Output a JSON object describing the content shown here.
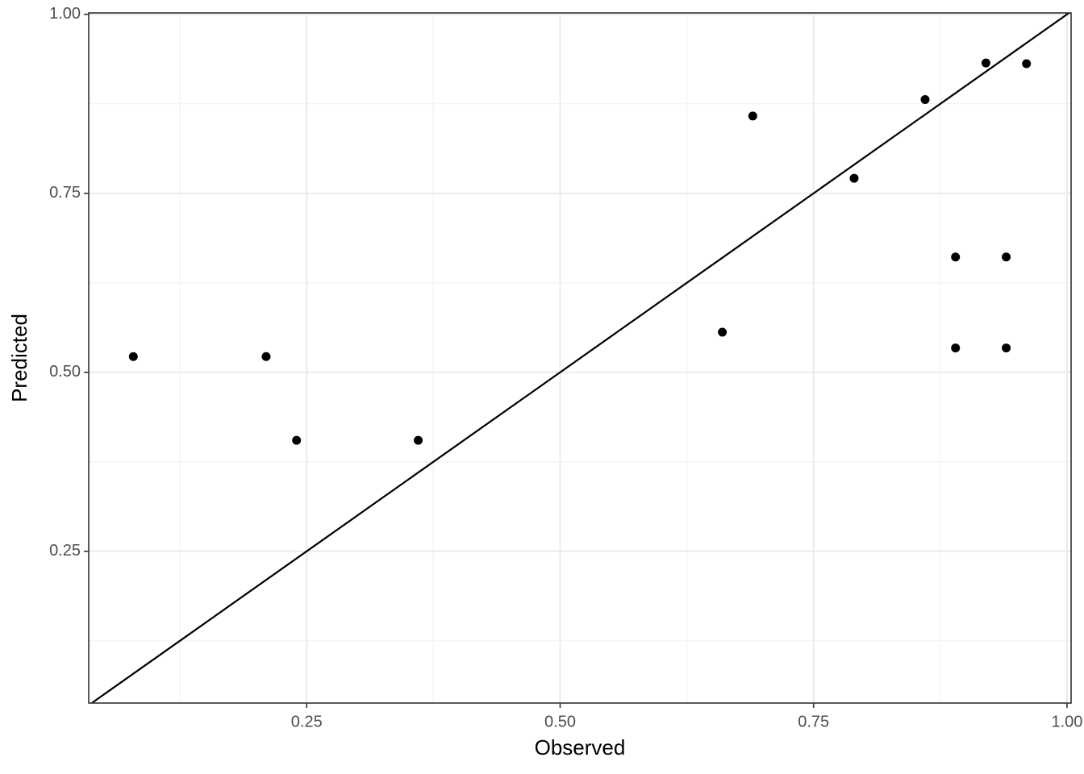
{
  "chart_data": {
    "type": "scatter",
    "x_label": "Observed",
    "y_label": "Predicted",
    "x": [
      0.079,
      0.21,
      0.24,
      0.36,
      0.66,
      0.69,
      0.79,
      0.86,
      0.89,
      0.94,
      0.89,
      0.94,
      0.92,
      0.96
    ],
    "values": [
      0.522,
      0.522,
      0.405,
      0.405,
      0.556,
      0.858,
      0.771,
      0.881,
      0.661,
      0.661,
      0.534,
      0.534,
      0.932,
      0.931
    ],
    "color": "#000000",
    "xlim": [
      0.035,
      1.004
    ],
    "ylim": [
      0.038,
      1.002
    ],
    "xticks": [
      {
        "value": 0.25,
        "label": "0.25"
      },
      {
        "value": 0.5,
        "label": "0.50"
      },
      {
        "value": 0.75,
        "label": "0.75"
      },
      {
        "value": 1,
        "label": "1.00"
      }
    ],
    "yticks": [
      {
        "value": 0.25,
        "label": "0.25"
      },
      {
        "value": 0.5,
        "label": "0.50"
      },
      {
        "value": 0.75,
        "label": "0.75"
      },
      {
        "value": 1,
        "label": "1.00"
      }
    ],
    "x_minor_ticks": [
      0.125,
      0.375,
      0.625,
      0.875
    ],
    "y_minor_ticks": [
      0.125,
      0.375,
      0.625,
      0.875
    ],
    "grid": true,
    "identity_line": true
  }
}
